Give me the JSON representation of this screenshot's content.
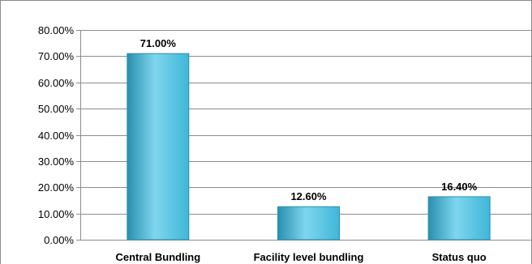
{
  "chart_data": {
    "type": "bar",
    "categories": [
      "Central Bundling",
      "Facility level bundling",
      "Status quo"
    ],
    "values": [
      71.0,
      12.6,
      16.4
    ],
    "data_labels": [
      "71.00%",
      "12.60%",
      "16.40%"
    ],
    "y_ticks": [
      "0.00%",
      "10.00%",
      "20.00%",
      "30.00%",
      "40.00%",
      "50.00%",
      "60.00%",
      "70.00%",
      "80.00%"
    ],
    "ylim": [
      0,
      80
    ],
    "grid": true,
    "title": "",
    "xlabel": "",
    "ylabel": "",
    "bar_color": "#3fb6d8",
    "bar_color_dark": "#2a8fb0",
    "bar_color_light": "#7fd6ee"
  }
}
